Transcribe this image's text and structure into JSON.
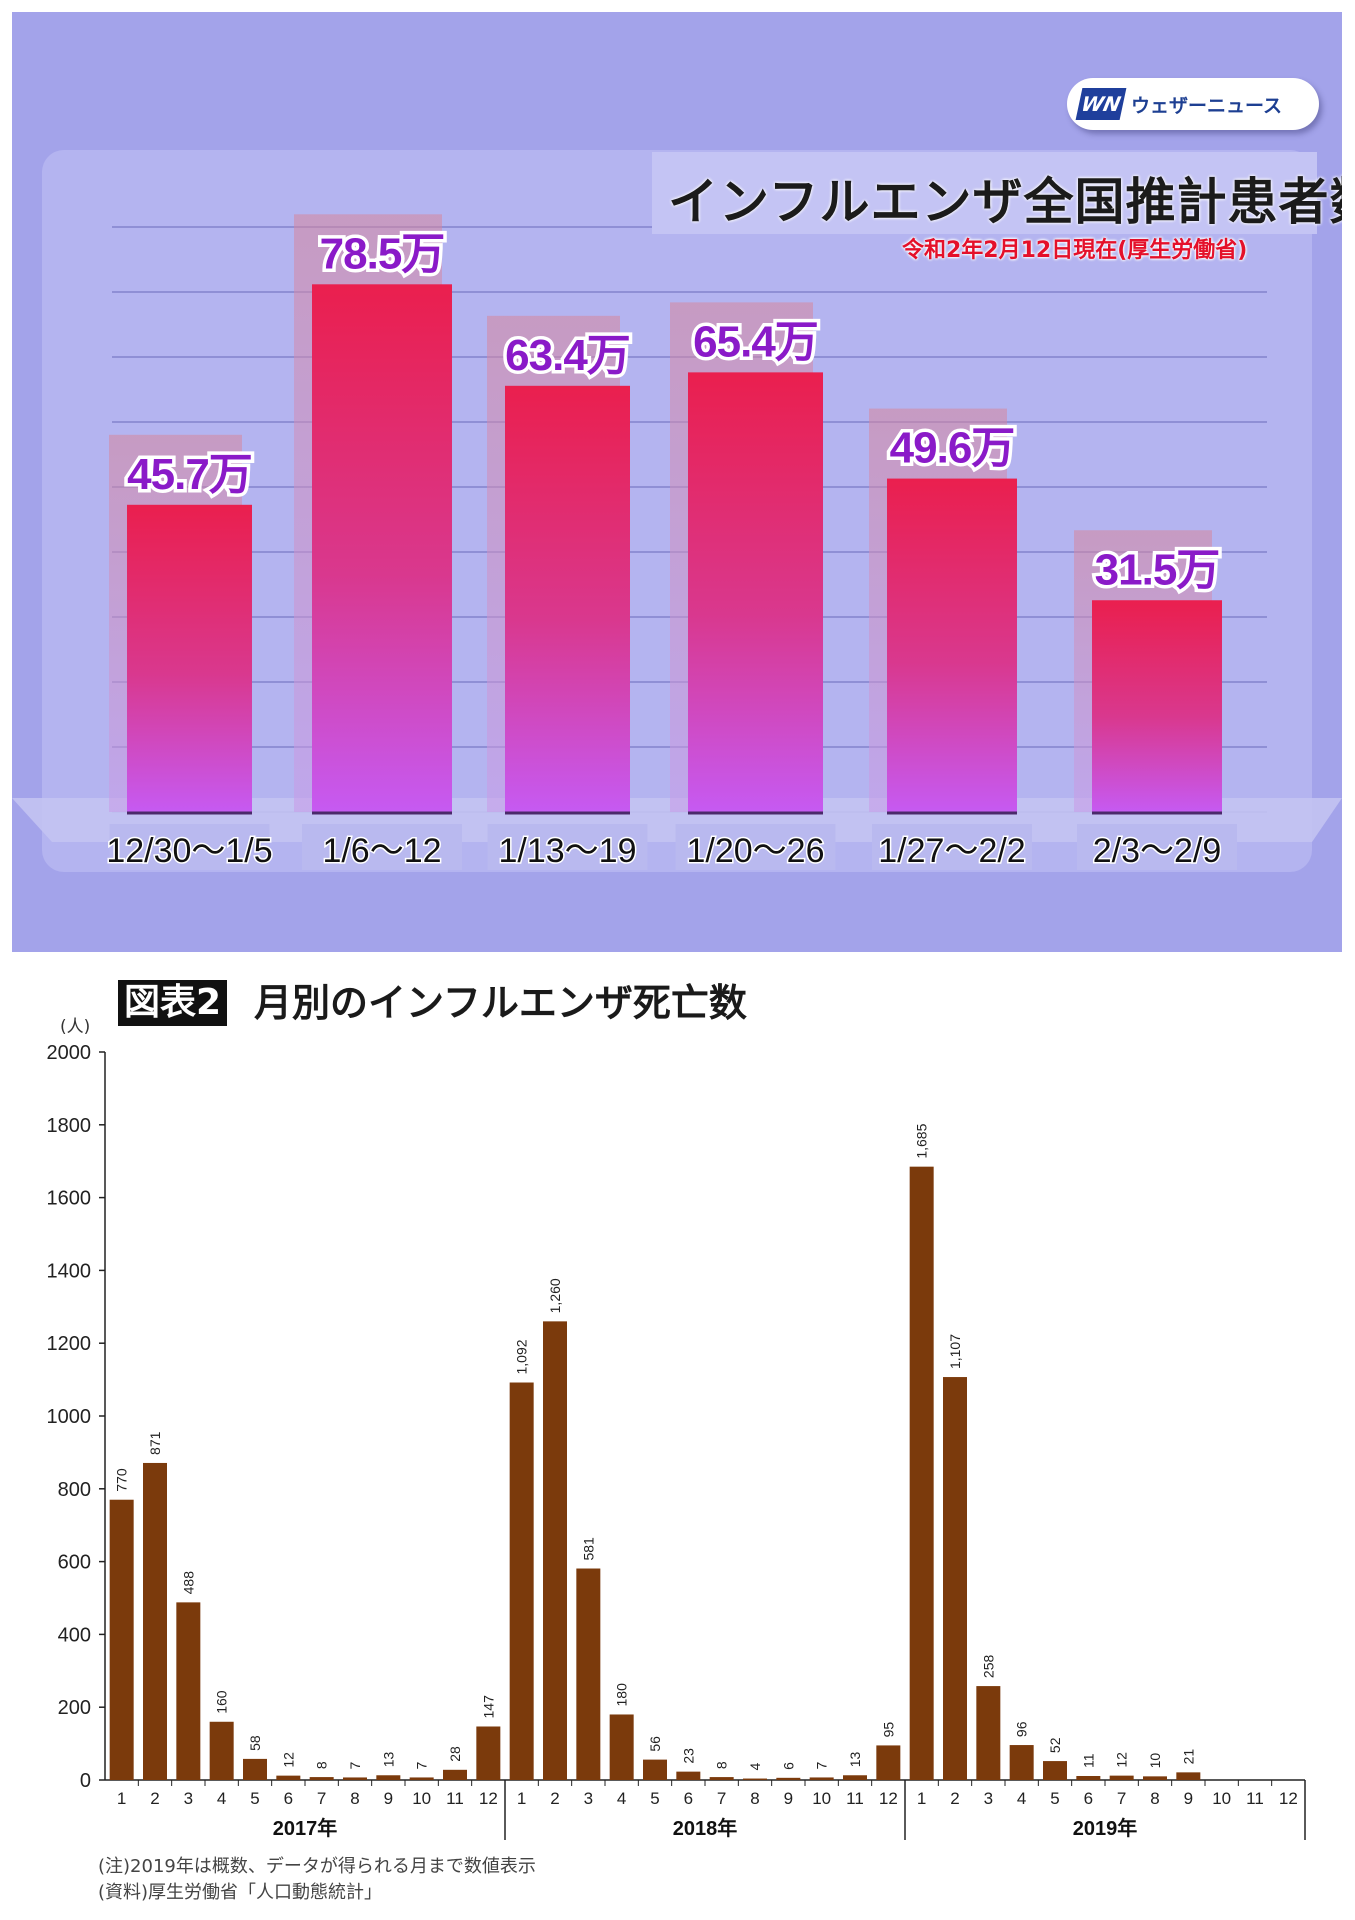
{
  "top": {
    "logo_mark": "WN",
    "logo_text": "ウェザーニュース",
    "title": "インフルエンザ全国推計患者数",
    "subtitle": "令和2年2月12日現在(厚生労働省)",
    "colors": {
      "bg": "#a3a3ea",
      "bar_top": "#e8204f",
      "bar_bottom": "#c457f0",
      "label": "#8a1ac8"
    }
  },
  "bottom": {
    "badge": "図表2",
    "title": "月別のインフルエンザ死亡数",
    "unit": "(人)",
    "note1": "(注)2019年は概数、データが得られる月まで数値表示",
    "note2": "(資料)厚生労働省「人口動態統計」",
    "colors": {
      "bar": "#7b3a0c",
      "axis": "#222222"
    }
  },
  "chart_data": [
    {
      "type": "bar",
      "title": "インフルエンザ全国推計患者数",
      "subtitle": "令和2年2月12日現在(厚生労働省)",
      "categories": [
        "12/30〜1/5",
        "1/6〜12",
        "1/13〜19",
        "1/20〜26",
        "1/27〜2/2",
        "2/3〜2/9"
      ],
      "values": [
        45.7,
        78.5,
        63.4,
        65.4,
        49.6,
        31.5
      ],
      "value_labels": [
        "45.7万",
        "78.5万",
        "63.4万",
        "65.4万",
        "49.6万",
        "31.5万"
      ],
      "unit": "万",
      "grid": true
    },
    {
      "type": "bar",
      "title": "月別のインフルエンザ死亡数",
      "ylabel": "(人)",
      "ylim": [
        0,
        2000
      ],
      "yticks": [
        "0",
        "200",
        "400",
        "600",
        "800",
        "1000",
        "1200",
        "1400",
        "1600",
        "1800",
        "2000"
      ],
      "groups": [
        "2017年",
        "2018年",
        "2019年"
      ],
      "months": [
        "1",
        "2",
        "3",
        "4",
        "5",
        "6",
        "7",
        "8",
        "9",
        "10",
        "11",
        "12"
      ],
      "values": [
        [
          770,
          871,
          488,
          160,
          58,
          12,
          8,
          7,
          13,
          7,
          28,
          147
        ],
        [
          1092,
          1260,
          581,
          180,
          56,
          23,
          8,
          4,
          6,
          7,
          13,
          95
        ],
        [
          1685,
          1107,
          258,
          96,
          52,
          11,
          12,
          10,
          21,
          null,
          null,
          null
        ]
      ],
      "value_labels": [
        [
          "770",
          "871",
          "488",
          "160",
          "58",
          "12",
          "8",
          "7",
          "13",
          "7",
          "28",
          "147"
        ],
        [
          "1,092",
          "1,260",
          "581",
          "180",
          "56",
          "23",
          "8",
          "4",
          "6",
          "7",
          "13",
          "95"
        ],
        [
          "1,685",
          "1,107",
          "258",
          "96",
          "52",
          "11",
          "12",
          "10",
          "21",
          "",
          "",
          ""
        ]
      ],
      "grid": false
    }
  ]
}
